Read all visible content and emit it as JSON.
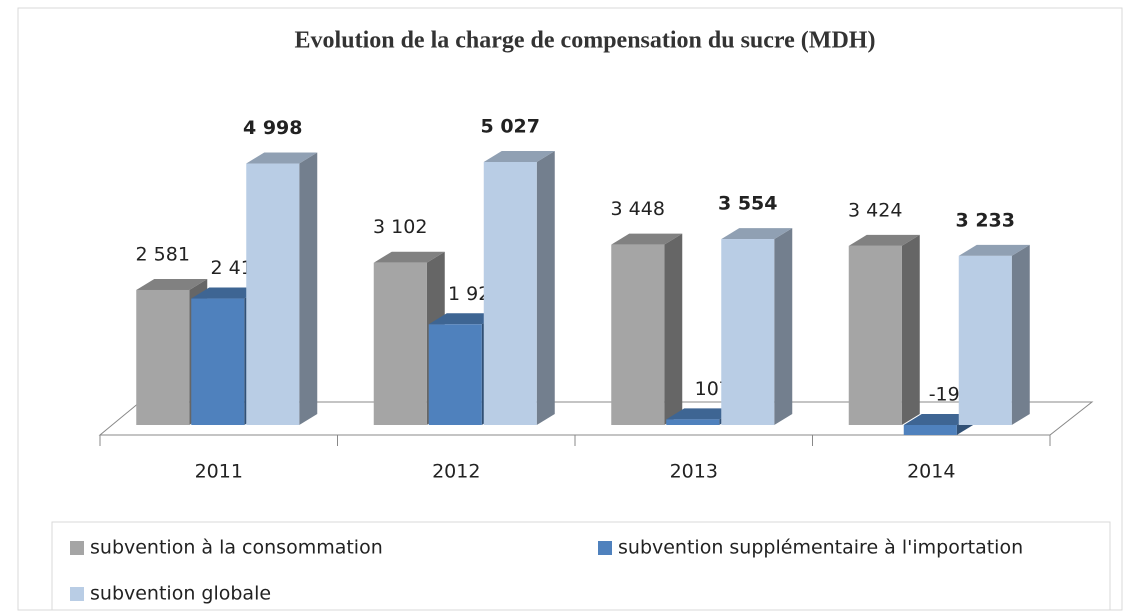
{
  "chart_data": {
    "type": "bar3d",
    "title": "Evolution de la charge de compensation du sucre (MDH)",
    "categories": [
      "2011",
      "2012",
      "2013",
      "2014"
    ],
    "series": [
      {
        "name": "subvention à la consommation",
        "color": "#a5a5a5",
        "values": [
          2581,
          3102,
          3448,
          3424
        ],
        "value_labels": [
          "2 581",
          "3 102",
          "3 448",
          "3 424"
        ]
      },
      {
        "name": "subvention supplémentaire à l'importation",
        "color": "#4f81bd",
        "values": [
          2417,
          1925,
          107,
          -191
        ],
        "value_labels": [
          "2 417",
          "1 925",
          "107",
          "-191"
        ]
      },
      {
        "name": "subvention globale",
        "color": "#b9cde5",
        "values": [
          4998,
          5027,
          3554,
          3233
        ],
        "value_labels": [
          "4 998",
          "5 027",
          "3 554",
          "3 233"
        ]
      }
    ],
    "legend": "bottom"
  }
}
